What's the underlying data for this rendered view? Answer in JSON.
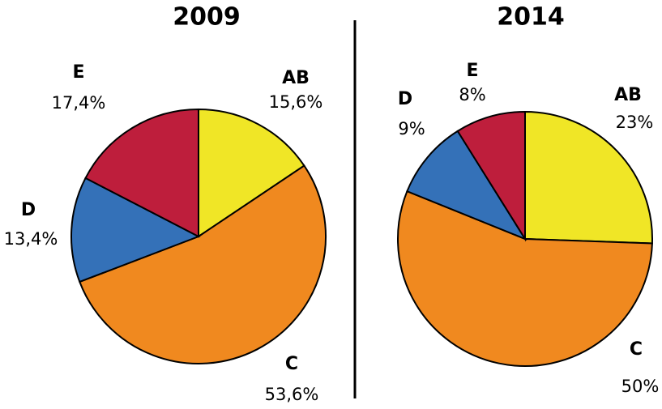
{
  "chart_data": [
    {
      "type": "pie",
      "title": "2009",
      "categories": [
        "AB",
        "C",
        "D",
        "E"
      ],
      "values": [
        15.6,
        53.6,
        13.4,
        17.4
      ],
      "value_labels": [
        "15,6%",
        "53,6%",
        "13,4%",
        "17,4%"
      ],
      "colors": [
        "#f0e626",
        "#f0891f",
        "#3471b8",
        "#be1e3c"
      ]
    },
    {
      "type": "pie",
      "title": "2014",
      "categories": [
        "AB",
        "C",
        "D",
        "E"
      ],
      "values": [
        23,
        50,
        9,
        8
      ],
      "value_labels": [
        "23%",
        "50%",
        "9%",
        "8%"
      ],
      "colors": [
        "#f0e626",
        "#f0891f",
        "#3471b8",
        "#be1e3c"
      ]
    }
  ]
}
